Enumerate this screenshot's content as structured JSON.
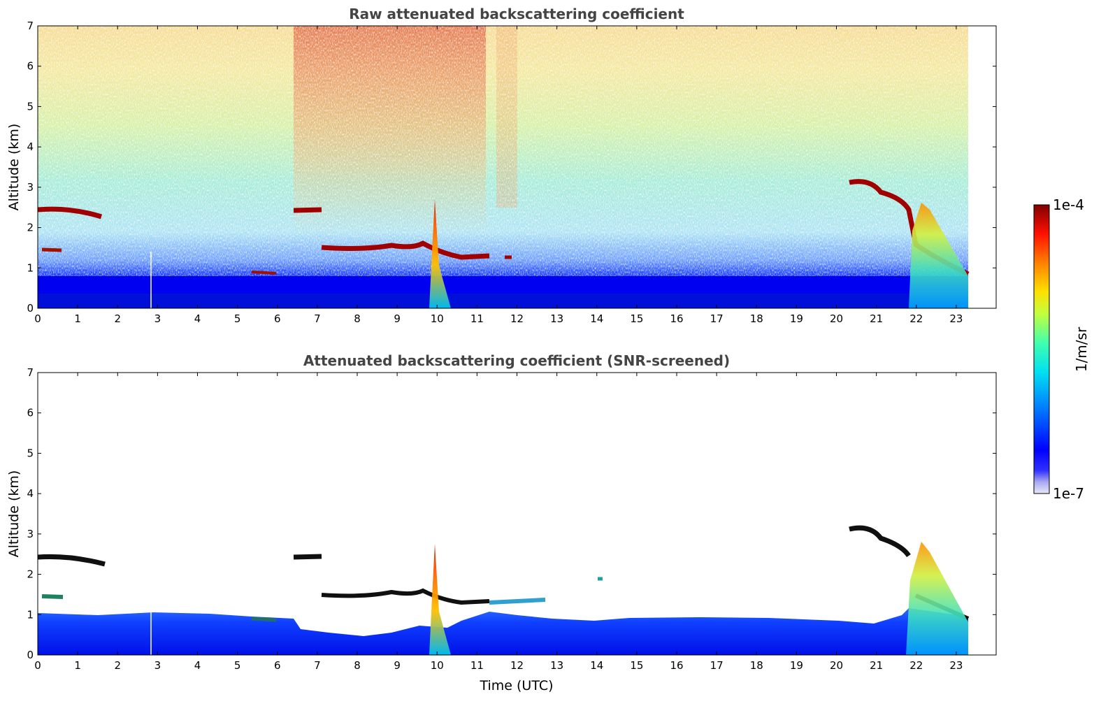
{
  "chart_data": [
    {
      "type": "heatmap",
      "title": "Raw attenuated backscattering coefficient",
      "xlabel": "",
      "ylabel": "Altitude (km)",
      "xlim": [
        0,
        24
      ],
      "ylim": [
        0,
        7
      ],
      "x_ticks": [
        "0",
        "1",
        "2",
        "3",
        "4",
        "5",
        "6",
        "7",
        "8",
        "9",
        "10",
        "11",
        "12",
        "13",
        "14",
        "15",
        "16",
        "17",
        "18",
        "19",
        "20",
        "21",
        "22",
        "23"
      ],
      "y_ticks": [
        "0",
        "1",
        "2",
        "3",
        "4",
        "5",
        "6",
        "7"
      ],
      "data_extent_hours": [
        0,
        23.3
      ],
      "color_scale": "jet_log",
      "cloud_layers_km": [
        {
          "t_start": 0.0,
          "t_end": 1.6,
          "alt": 2.35
        },
        {
          "t_start": 0.1,
          "t_end": 0.6,
          "alt": 1.42
        },
        {
          "t_start": 6.4,
          "t_end": 7.1,
          "alt": 2.4
        },
        {
          "t_start": 7.1,
          "t_end": 11.3,
          "alt": 1.45
        },
        {
          "t_start": 11.6,
          "t_end": 11.9,
          "alt": 1.25
        },
        {
          "t_start": 20.4,
          "t_end": 23.3,
          "alt": 3.1,
          "alt_end": 0.85
        }
      ]
    },
    {
      "type": "heatmap",
      "title": "Attenuated backscattering coefficient (SNR-screened)",
      "xlabel": "Time (UTC)",
      "ylabel": "Altitude (km)",
      "xlim": [
        0,
        24
      ],
      "ylim": [
        0,
        7
      ],
      "x_ticks": [
        "0",
        "1",
        "2",
        "3",
        "4",
        "5",
        "6",
        "7",
        "8",
        "9",
        "10",
        "11",
        "12",
        "13",
        "14",
        "15",
        "16",
        "17",
        "18",
        "19",
        "20",
        "21",
        "22",
        "23"
      ],
      "y_ticks": [
        "0",
        "1",
        "2",
        "3",
        "4",
        "5",
        "6",
        "7"
      ],
      "data_extent_hours": [
        0,
        23.3
      ],
      "color_scale": "jet_log",
      "boundary_layer_top_km": 0.95
    }
  ],
  "colorbar": {
    "label": "1/m/sr",
    "max_label": "1e-4",
    "min_label": "1e-7",
    "range": [
      1e-07,
      0.0001
    ],
    "scale": "log"
  },
  "colors": {
    "title": "#444444",
    "axis": "#000000",
    "background": "#ffffff"
  }
}
